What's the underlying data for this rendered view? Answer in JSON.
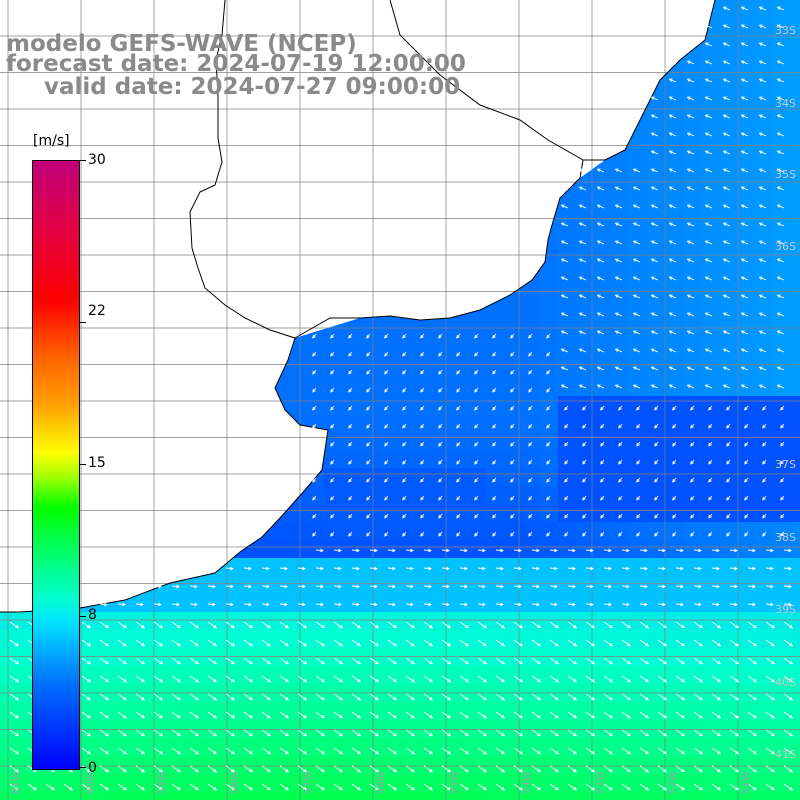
{
  "title": {
    "line1": "modelo GEFS-WAVE (NCEP)",
    "line2": "forecast date: 2024-07-19 12:00:00",
    "line3": "valid date: 2024-07-27 09:00:00"
  },
  "colorbar": {
    "unit": "[m/s]",
    "ticks": [
      "30",
      "22",
      "15",
      "8",
      "0"
    ],
    "tick_values": [
      30,
      22,
      15,
      8,
      0
    ],
    "range": [
      0,
      30
    ]
  },
  "map": {
    "lat_labels": [
      "33S",
      "34S",
      "35S",
      "36S",
      "37S",
      "38S",
      "39S",
      "40S",
      "41S"
    ],
    "lon_labels": [
      "61W",
      "60W",
      "59W",
      "58W",
      "57W",
      "56W",
      "55W",
      "54W",
      "53W",
      "52W",
      "51W"
    ],
    "colors": {
      "land": "#ffffff",
      "coast": "#000000",
      "grid": "#808080",
      "arrow": "#ffffff"
    }
  }
}
